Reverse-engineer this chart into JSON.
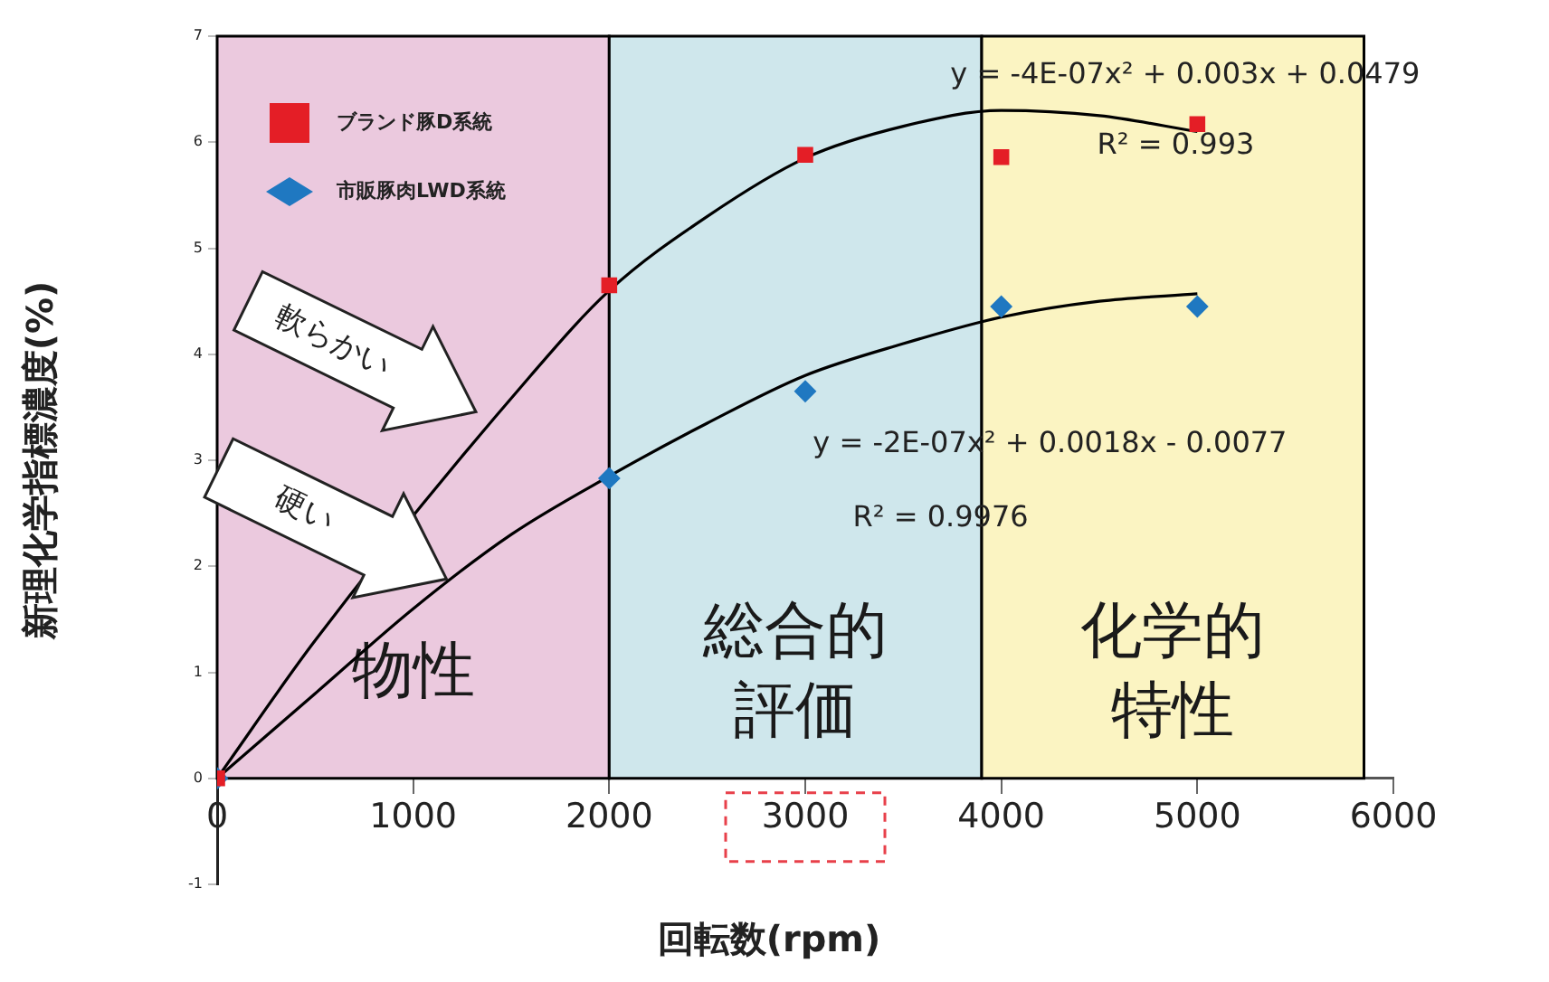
{
  "chart_data": {
    "type": "scatter",
    "xlabel": "回転数(rpm)",
    "ylabel": "新理化学指標濃度(%)",
    "xlim": [
      0,
      6000
    ],
    "xticks": [
      0,
      1000,
      2000,
      3000,
      4000,
      5000,
      6000
    ],
    "ylim": [
      -1,
      7
    ],
    "yticks": [
      -1,
      0,
      1,
      2,
      3,
      4,
      5,
      6,
      7
    ],
    "grid": false,
    "legend": "top left",
    "series": [
      {
        "name": "ブランド豚D系統",
        "color": "#e41e26",
        "marker": "square",
        "x": [
          0,
          2000,
          3000,
          4000,
          5000
        ],
        "values": [
          0,
          4.65,
          5.88,
          5.86,
          6.17
        ]
      },
      {
        "name": "市販豚肉LWD系統",
        "color": "#1f78c1",
        "marker": "diamond",
        "x": [
          0,
          2000,
          3000,
          4000,
          5000
        ],
        "values": [
          0,
          2.83,
          3.65,
          4.45,
          4.45
        ]
      },
      {
        "type": "line",
        "color": "#000000",
        "marker": "none",
        "x": [
          0,
          500,
          1600,
          2000,
          2500,
          3000,
          3500,
          4000,
          4500,
          5000
        ],
        "values": [
          0,
          1.3,
          3.8,
          4.6,
          5.3,
          5.85,
          6.15,
          6.3,
          6.25,
          6.1
        ]
      },
      {
        "type": "line",
        "color": "#000000",
        "marker": "none",
        "x": [
          0,
          500,
          1000,
          1500,
          2000,
          2500,
          3000,
          3500,
          4000,
          4500,
          5000
        ],
        "values": [
          0,
          0.8,
          1.6,
          2.3,
          2.85,
          3.35,
          3.8,
          4.1,
          4.35,
          4.5,
          4.57
        ]
      }
    ],
    "bands": [
      {
        "axis": "x",
        "from": 0,
        "to": 2000,
        "label": "物性",
        "color": "#ebc9de"
      },
      {
        "axis": "x",
        "from": 2000,
        "to": 3900,
        "label": "総合的評価",
        "color": "#cfe7ec"
      },
      {
        "axis": "x",
        "from": 3900,
        "to": 5850,
        "label": "化学的特性",
        "color": "#fbf4c2"
      }
    ],
    "annotations": [
      "軟らかい",
      "硬い",
      "y = -4E-07x² + 0.003x + 0.0479",
      "R² = 0.993",
      "y = -2E-07x² + 0.0018x - 0.0077",
      "R² = 0.9976"
    ]
  }
}
